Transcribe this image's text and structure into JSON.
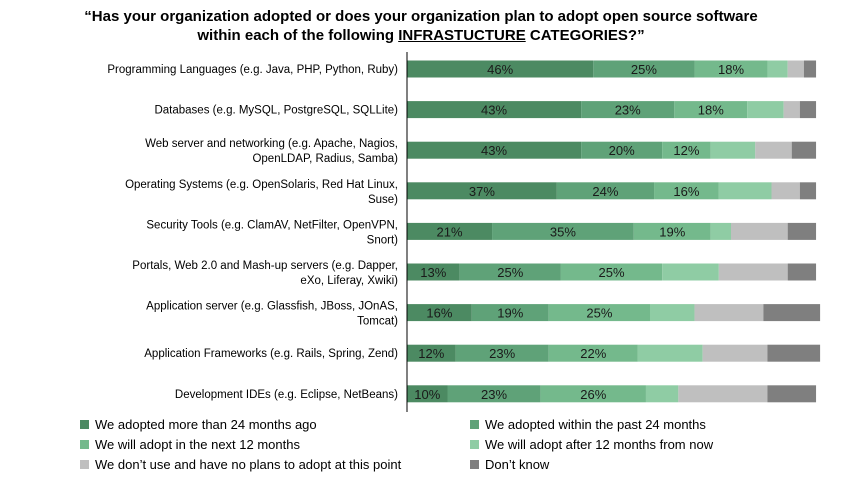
{
  "title": {
    "line1": "“Has your organization adopted or does your organization plan to adopt open source software",
    "line2_prefix": "within each of the following ",
    "line2_underlined": "INFRASTUCTURE",
    "line2_suffix": " CATEGORIES?”"
  },
  "colors": {
    "over_24_months": "#4c8a62",
    "past_24_months": "#5fa278",
    "next_12_months": "#74b98c",
    "after_12_months": "#8fcca4",
    "no_plans": "#bfbfbf",
    "dont_know": "#7f7f7f"
  },
  "chart_data": {
    "type": "bar",
    "orientation": "horizontal",
    "stacked": true,
    "unit": "%",
    "xlim": [
      0,
      100
    ],
    "grid": false,
    "legend_position": "bottom",
    "categories": [
      "Programming Languages (e.g. Java, PHP, Python, Ruby)",
      "Databases (e.g. MySQL, PostgreSQL, SQLLite)",
      "Web server and networking (e.g. Apache, Nagios, OpenLDAP, Radius, Samba)",
      "Operating Systems (e.g. OpenSolaris, Red Hat Linux, Suse)",
      "Security Tools (e.g. ClamAV, NetFilter, OpenVPN, Snort)",
      "Portals, Web 2.0 and Mash-up servers (e.g. Dapper, eXo, Liferay, Xwiki)",
      "Application server (e.g. Glassfish, JBoss, JOnAS, Tomcat)",
      "Application Frameworks (e.g. Rails, Spring, Zend)",
      "Development IDEs (e.g. Eclipse, NetBeans)"
    ],
    "series": [
      {
        "name": "We adopted more than 24 months ago",
        "color_key": "over_24_months",
        "labeled": true,
        "values": [
          46,
          43,
          43,
          37,
          21,
          13,
          16,
          12,
          10
        ]
      },
      {
        "name": "We adopted within the past 24 months",
        "color_key": "past_24_months",
        "labeled": true,
        "values": [
          25,
          23,
          20,
          24,
          35,
          25,
          19,
          23,
          23
        ]
      },
      {
        "name": "We will adopt in the next 12 months",
        "color_key": "next_12_months",
        "labeled": true,
        "values": [
          18,
          18,
          12,
          16,
          19,
          25,
          25,
          22,
          26
        ]
      },
      {
        "name": "We will adopt after 12 months from now",
        "color_key": "after_12_months",
        "labeled": false,
        "values": [
          5,
          9,
          11,
          13,
          5,
          14,
          11,
          16,
          8
        ]
      },
      {
        "name": "We don’t use and have no plans to adopt at this point",
        "color_key": "no_plans",
        "labeled": false,
        "values": [
          4,
          4,
          9,
          7,
          14,
          17,
          17,
          16,
          22
        ]
      },
      {
        "name": "Don’t know",
        "color_key": "dont_know",
        "labeled": false,
        "values": [
          3,
          4,
          6,
          4,
          7,
          7,
          14,
          13,
          12
        ]
      }
    ]
  }
}
